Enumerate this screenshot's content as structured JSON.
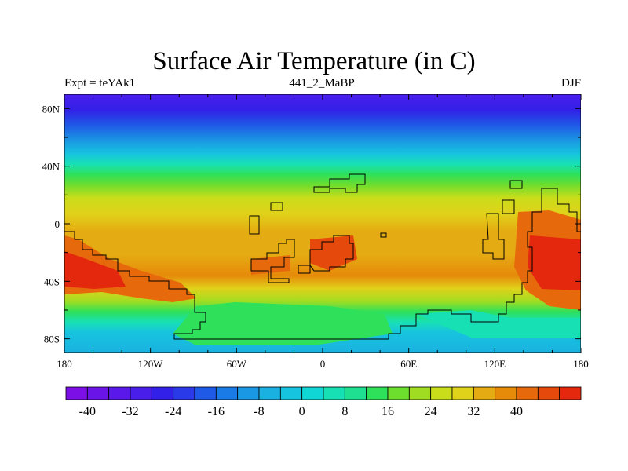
{
  "title": "Surface Air Temperature (in C)",
  "subtitle_left": "Expt = teYAk1",
  "subtitle_center": "441_2_MaBP",
  "subtitle_right": "DJF",
  "map": {
    "lon_ticks": [
      "180",
      "120W",
      "60W",
      "0",
      "60E",
      "120E",
      "180"
    ],
    "lat_ticks": [
      "80N",
      "40N",
      "0",
      "40S",
      "80S"
    ],
    "lon_range": [
      -180,
      180
    ],
    "lat_range": [
      -90,
      90
    ],
    "variable": "Surface Air Temperature",
    "units": "C",
    "season": "DJF"
  },
  "colorbar": {
    "labels": [
      "-40",
      "-32",
      "-24",
      "-16",
      "-8",
      "0",
      "8",
      "16",
      "24",
      "32",
      "40"
    ],
    "levels": [
      -44,
      -40,
      -36,
      -32,
      -28,
      -24,
      -20,
      -16,
      -12,
      -8,
      -4,
      0,
      4,
      8,
      12,
      16,
      20,
      24,
      28,
      32,
      36,
      40,
      44
    ],
    "colors": [
      "#7b0fe6",
      "#6a14e8",
      "#5a19ea",
      "#4a1eea",
      "#3320e8",
      "#2a3ae8",
      "#1f5ae6",
      "#1a7ae6",
      "#1a98e3",
      "#1ab1e1",
      "#17c4df",
      "#10d6d5",
      "#18e0b5",
      "#1fe090",
      "#2ee05a",
      "#6ddd2e",
      "#a0dd22",
      "#c9dd1a",
      "#e0d21a",
      "#e5ab12",
      "#e68a0a",
      "#e66a0c",
      "#e54a0c",
      "#e4280d"
    ]
  },
  "chart_data": {
    "type": "heatmap",
    "title": "Surface Air Temperature (in C)",
    "xlabel": "",
    "ylabel": "",
    "xlim": [
      -180,
      180
    ],
    "ylim": [
      -90,
      90
    ],
    "zonal_mean_temperature_C": {
      "lat": [
        90,
        80,
        70,
        60,
        50,
        40,
        30,
        20,
        10,
        0,
        -10,
        -20,
        -30,
        -40,
        -50,
        -60,
        -70,
        -80,
        -90
      ],
      "temp": [
        -36,
        -30,
        -22,
        -12,
        -2,
        8,
        18,
        24,
        27,
        27,
        28,
        30,
        32,
        30,
        24,
        14,
        6,
        2,
        0
      ]
    }
  }
}
